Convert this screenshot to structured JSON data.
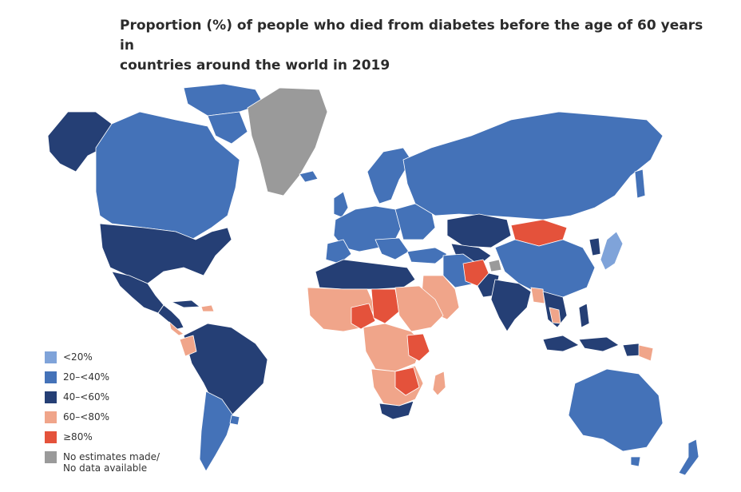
{
  "title": {
    "line1": "Proportion (%) of people who died from diabetes before the age of 60 years in",
    "line2": "countries around the world in 2019"
  },
  "colors": {
    "lt20": "#7fa3d9",
    "c20_40": "#4472b8",
    "c40_60": "#253f75",
    "c60_80": "#f0a58a",
    "ge80": "#e4523b",
    "none": "#9a9a9a"
  },
  "legend": [
    {
      "key": "lt20",
      "label": "<20%"
    },
    {
      "key": "c20_40",
      "label": "20–<40%"
    },
    {
      "key": "c40_60",
      "label": "40–<60%"
    },
    {
      "key": "c60_80",
      "label": "60–<80%"
    },
    {
      "key": "ge80",
      "label": "≥80%"
    },
    {
      "key": "none",
      "label": "No estimates made/",
      "label2": "No data available"
    }
  ]
}
